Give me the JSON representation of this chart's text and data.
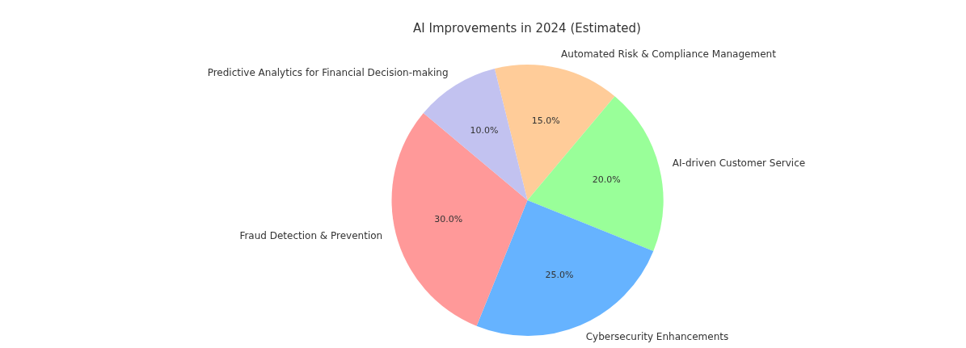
{
  "chart_data": {
    "type": "pie",
    "title": "AI Improvements in 2024 (Estimated)",
    "categories": [
      "Automated Risk & Compliance Management",
      "AI-driven Customer Service",
      "Cybersecurity Enhancements",
      "Fraud Detection & Prevention",
      "Predictive Analytics for Financial Decision-making"
    ],
    "values": [
      15,
      20,
      25,
      30,
      10
    ],
    "colors": [
      "#ffcc99",
      "#99ff99",
      "#66b3ff",
      "#ff9999",
      "#c2c2f0"
    ],
    "value_labels": [
      "15.0%",
      "20.0%",
      "25.0%",
      "30.0%",
      "10.0%"
    ],
    "legend": false
  }
}
